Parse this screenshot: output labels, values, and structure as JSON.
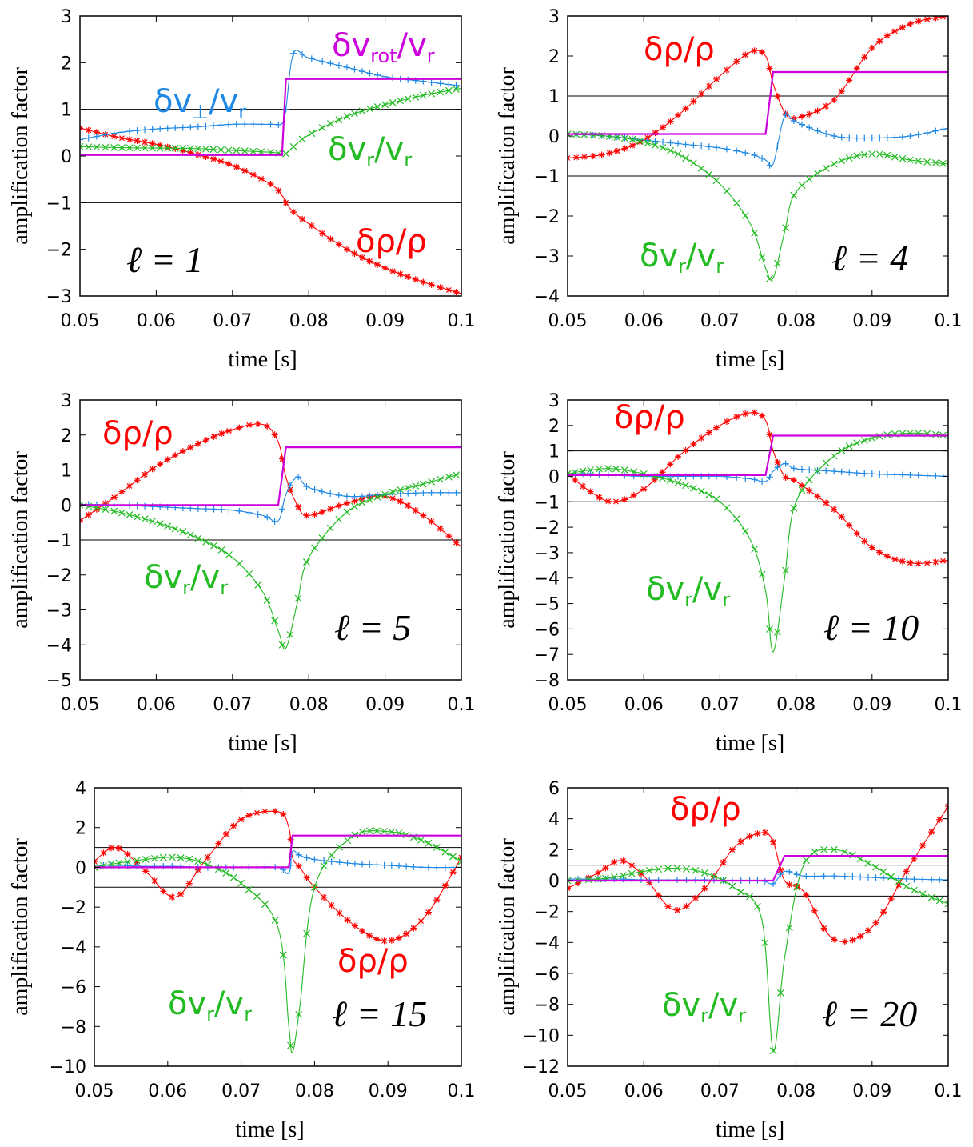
{
  "chart_data": [
    {
      "type": "line",
      "panel": "l=1",
      "ell_label": "ℓ = 1",
      "xlabel": "time [s]",
      "ylabel": "amplification factor",
      "xlim": [
        0.05,
        0.1
      ],
      "ylim": [
        -3,
        3
      ],
      "xticks": [
        "0.05",
        "0.06",
        "0.07",
        "0.08",
        "0.09",
        "0.1"
      ],
      "yticks": [
        "-3",
        "-2",
        "-1",
        "0",
        "1",
        "2",
        "3"
      ],
      "hlines": [
        1,
        -1
      ],
      "x": [
        0.05,
        0.055,
        0.06,
        0.065,
        0.07,
        0.075,
        0.0765,
        0.077,
        0.078,
        0.08,
        0.085,
        0.09,
        0.095,
        0.1
      ],
      "series": [
        {
          "name": "δρ/ρ",
          "color": "#ff0000",
          "marker": "*",
          "values": [
            0.6,
            0.4,
            0.25,
            0.05,
            -0.2,
            -0.6,
            -0.85,
            -1.0,
            -1.2,
            -1.45,
            -2.0,
            -2.4,
            -2.7,
            -2.95
          ]
        },
        {
          "name": "δv⊥/vr",
          "color": "#1e88e5",
          "marker": "+",
          "values": [
            0.35,
            0.5,
            0.58,
            0.62,
            0.68,
            0.68,
            0.7,
            1.0,
            2.2,
            2.1,
            1.9,
            1.7,
            1.6,
            1.5
          ]
        },
        {
          "name": "δvr/vr",
          "color": "#22bb22",
          "marker": "x",
          "values": [
            0.2,
            0.18,
            0.17,
            0.16,
            0.12,
            0.08,
            0.05,
            0.05,
            0.2,
            0.45,
            0.85,
            1.1,
            1.3,
            1.45
          ]
        },
        {
          "name": "δvrot/vr",
          "color": "#cc00dd",
          "marker": "",
          "values": [
            0.02,
            0.02,
            0.02,
            0.02,
            0.02,
            0.02,
            0.02,
            1.65,
            1.65,
            1.65,
            1.65,
            1.65,
            1.65,
            1.65
          ]
        }
      ],
      "annotations": [
        {
          "series": "δvrot/vr",
          "base": "δv",
          "sub": "rot",
          "tail": "/v",
          "sub2": "r",
          "color": "#cc00dd"
        },
        {
          "series": "δv⊥/vr",
          "base": "δv",
          "sub": "⊥",
          "tail": "/v",
          "sub2": "r",
          "color": "#1e88e5"
        },
        {
          "series": "δvr/vr",
          "base": "δv",
          "sub": "r",
          "tail": "/v",
          "sub2": "r",
          "color": "#22bb22"
        },
        {
          "series": "δρ/ρ",
          "base": "δρ/ρ",
          "sub": "",
          "tail": "",
          "sub2": "",
          "color": "#ff0000"
        }
      ]
    },
    {
      "type": "line",
      "panel": "l=4",
      "ell_label": "ℓ = 4",
      "xlabel": "time [s]",
      "ylabel": "amplification factor",
      "xlim": [
        0.05,
        0.1
      ],
      "ylim": [
        -4,
        3
      ],
      "xticks": [
        "0.05",
        "0.06",
        "0.07",
        "0.08",
        "0.09",
        "0.1"
      ],
      "yticks": [
        "-4",
        "-3",
        "-2",
        "-1",
        "0",
        "1",
        "2",
        "3"
      ],
      "hlines": [
        1,
        -1
      ],
      "x": [
        0.05,
        0.055,
        0.06,
        0.065,
        0.07,
        0.074,
        0.076,
        0.077,
        0.0785,
        0.08,
        0.085,
        0.09,
        0.095,
        0.1
      ],
      "series": [
        {
          "name": "δρ/ρ",
          "color": "#ff0000",
          "marker": "*",
          "values": [
            -0.55,
            -0.45,
            -0.1,
            0.6,
            1.5,
            2.1,
            2.0,
            1.3,
            0.6,
            0.45,
            0.9,
            2.2,
            2.8,
            3.0
          ]
        },
        {
          "name": "δv⊥/vr",
          "color": "#1e88e5",
          "marker": "+",
          "values": [
            0.05,
            0.0,
            -0.1,
            -0.2,
            -0.3,
            -0.45,
            -0.6,
            -0.7,
            0.5,
            0.35,
            0.0,
            -0.05,
            0.0,
            0.2
          ]
        },
        {
          "name": "δvr/vr",
          "color": "#22bb22",
          "marker": "x",
          "values": [
            0.05,
            0.0,
            -0.15,
            -0.5,
            -1.2,
            -2.2,
            -3.3,
            -3.55,
            -2.4,
            -1.4,
            -0.7,
            -0.45,
            -0.6,
            -0.7
          ]
        },
        {
          "name": "δvrot/vr",
          "color": "#cc00dd",
          "marker": "",
          "values": [
            0.05,
            0.05,
            0.05,
            0.05,
            0.05,
            0.05,
            0.05,
            1.6,
            1.6,
            1.6,
            1.6,
            1.6,
            1.6,
            1.6
          ]
        }
      ],
      "annotations": [
        {
          "series": "δρ/ρ",
          "base": "δρ/ρ",
          "sub": "",
          "tail": "",
          "sub2": "",
          "color": "#ff0000"
        },
        {
          "series": "δvr/vr",
          "base": "δv",
          "sub": "r",
          "tail": "/v",
          "sub2": "r",
          "color": "#22bb22"
        }
      ]
    },
    {
      "type": "line",
      "panel": "l=5",
      "ell_label": "ℓ = 5",
      "xlabel": "time [s]",
      "ylabel": "amplification factor",
      "xlim": [
        0.05,
        0.1
      ],
      "ylim": [
        -5,
        3
      ],
      "xticks": [
        "0.05",
        "0.06",
        "0.07",
        "0.08",
        "0.09",
        "0.1"
      ],
      "yticks": [
        "-5",
        "-4",
        "-3",
        "-2",
        "-1",
        "0",
        "1",
        "2",
        "3"
      ],
      "hlines": [
        1,
        -1
      ],
      "x": [
        0.05,
        0.055,
        0.06,
        0.065,
        0.07,
        0.074,
        0.076,
        0.077,
        0.0785,
        0.08,
        0.085,
        0.09,
        0.095,
        0.1
      ],
      "series": [
        {
          "name": "δρ/ρ",
          "color": "#ff0000",
          "marker": "*",
          "values": [
            -0.45,
            0.3,
            1.1,
            1.7,
            2.15,
            2.3,
            1.8,
            0.8,
            0.0,
            -0.3,
            0.05,
            0.25,
            -0.3,
            -1.2
          ]
        },
        {
          "name": "δv⊥/vr",
          "color": "#1e88e5",
          "marker": "+",
          "values": [
            0.02,
            0.0,
            -0.05,
            -0.1,
            -0.15,
            -0.3,
            -0.45,
            0.3,
            0.8,
            0.5,
            0.25,
            0.3,
            0.35,
            0.35
          ]
        },
        {
          "name": "δvr/vr",
          "color": "#22bb22",
          "marker": "x",
          "values": [
            0.0,
            -0.2,
            -0.5,
            -0.9,
            -1.5,
            -2.5,
            -3.6,
            -4.1,
            -2.8,
            -1.5,
            -0.2,
            0.3,
            0.6,
            0.9
          ]
        },
        {
          "name": "δvrot/vr",
          "color": "#cc00dd",
          "marker": "",
          "values": [
            0.0,
            0.0,
            0.0,
            0.0,
            0.0,
            0.0,
            0.0,
            1.65,
            1.65,
            1.65,
            1.65,
            1.65,
            1.65,
            1.65
          ]
        }
      ],
      "annotations": [
        {
          "series": "δρ/ρ",
          "base": "δρ/ρ",
          "sub": "",
          "tail": "",
          "sub2": "",
          "color": "#ff0000"
        },
        {
          "series": "δvr/vr",
          "base": "δv",
          "sub": "r",
          "tail": "/v",
          "sub2": "r",
          "color": "#22bb22"
        }
      ]
    },
    {
      "type": "line",
      "panel": "l=10",
      "ell_label": "ℓ = 10",
      "xlabel": "time [s]",
      "ylabel": "amplification factor",
      "xlim": [
        0.05,
        0.1
      ],
      "ylim": [
        -8,
        3
      ],
      "xticks": [
        "0.05",
        "0.06",
        "0.07",
        "0.08",
        "0.09",
        "0.1"
      ],
      "yticks": [
        "-8",
        "-7",
        "-6",
        "-5",
        "-4",
        "-3",
        "-2",
        "-1",
        "0",
        "1",
        "2",
        "3"
      ],
      "hlines": [
        1,
        -1
      ],
      "x": [
        0.05,
        0.053,
        0.056,
        0.06,
        0.065,
        0.07,
        0.074,
        0.076,
        0.077,
        0.0785,
        0.08,
        0.085,
        0.09,
        0.095,
        0.1
      ],
      "series": [
        {
          "name": "δρ/ρ",
          "color": "#ff0000",
          "marker": "*",
          "values": [
            0.1,
            -0.6,
            -1.0,
            -0.5,
            0.9,
            2.0,
            2.5,
            2.2,
            1.0,
            0.0,
            -0.2,
            -1.3,
            -2.8,
            -3.4,
            -3.3
          ]
        },
        {
          "name": "δv⊥/vr",
          "color": "#1e88e5",
          "marker": "+",
          "values": [
            0.1,
            0.1,
            0.05,
            0.0,
            0.0,
            0.0,
            -0.1,
            -0.2,
            0.2,
            0.5,
            0.3,
            0.2,
            0.1,
            0.05,
            0.0
          ]
        },
        {
          "name": "δvr/vr",
          "color": "#22bb22",
          "marker": "x",
          "values": [
            0.1,
            0.25,
            0.3,
            0.1,
            -0.3,
            -1.0,
            -2.5,
            -4.5,
            -6.9,
            -4.0,
            -1.0,
            0.8,
            1.5,
            1.7,
            1.6
          ]
        },
        {
          "name": "δvrot/vr",
          "color": "#cc00dd",
          "marker": "",
          "values": [
            0.05,
            0.05,
            0.05,
            0.05,
            0.05,
            0.05,
            0.05,
            0.05,
            1.6,
            1.6,
            1.6,
            1.6,
            1.6,
            1.6,
            1.6
          ]
        }
      ],
      "annotations": [
        {
          "series": "δρ/ρ",
          "base": "δρ/ρ",
          "sub": "",
          "tail": "",
          "sub2": "",
          "color": "#ff0000"
        },
        {
          "series": "δvr/vr",
          "base": "δv",
          "sub": "r",
          "tail": "/v",
          "sub2": "r",
          "color": "#22bb22"
        }
      ]
    },
    {
      "type": "line",
      "panel": "l=15",
      "ell_label": "ℓ = 15",
      "xlabel": "time [s]",
      "ylabel": "amplification factor",
      "xlim": [
        0.05,
        0.1
      ],
      "ylim": [
        -10,
        4
      ],
      "xticks": [
        "0.05",
        "0.06",
        "0.07",
        "0.08",
        "0.09",
        "0.1"
      ],
      "yticks": [
        "-10",
        "-8",
        "-6",
        "-4",
        "-2",
        "0",
        "2",
        "4"
      ],
      "hlines": [
        1,
        -1
      ],
      "x": [
        0.05,
        0.053,
        0.057,
        0.061,
        0.065,
        0.07,
        0.075,
        0.0765,
        0.077,
        0.078,
        0.08,
        0.085,
        0.09,
        0.095,
        0.1
      ],
      "series": [
        {
          "name": "δρ/ρ",
          "color": "#ff0000",
          "marker": "*",
          "values": [
            0.3,
            1.0,
            -0.2,
            -1.5,
            0.3,
            2.4,
            2.8,
            2.0,
            0.5,
            0.0,
            -1.0,
            -2.8,
            -3.7,
            -2.5,
            0.5
          ]
        },
        {
          "name": "δv⊥/vr",
          "color": "#1e88e5",
          "marker": "+",
          "values": [
            0.1,
            0.1,
            0.05,
            0.05,
            0.0,
            0.0,
            0.0,
            -0.3,
            0.8,
            0.6,
            0.4,
            0.2,
            0.1,
            0.0,
            0.0
          ]
        },
        {
          "name": "δvr/vr",
          "color": "#22bb22",
          "marker": "x",
          "values": [
            0.0,
            0.2,
            0.4,
            0.5,
            0.2,
            -0.8,
            -3.0,
            -8.0,
            -9.3,
            -7.0,
            -1.0,
            1.5,
            1.8,
            1.3,
            0.3
          ]
        },
        {
          "name": "δvrot/vr",
          "color": "#cc00dd",
          "marker": "",
          "values": [
            0.0,
            0.0,
            0.0,
            0.0,
            0.0,
            0.0,
            0.0,
            0.0,
            1.6,
            1.6,
            1.6,
            1.6,
            1.6,
            1.6,
            1.6
          ]
        }
      ],
      "annotations": [
        {
          "series": "δρ/ρ",
          "base": "δρ/ρ",
          "sub": "",
          "tail": "",
          "sub2": "",
          "color": "#ff0000"
        },
        {
          "series": "δvr/vr",
          "base": "δv",
          "sub": "r",
          "tail": "/v",
          "sub2": "r",
          "color": "#22bb22"
        }
      ]
    },
    {
      "type": "line",
      "panel": "l=20",
      "ell_label": "ℓ = 20",
      "xlabel": "time [s]",
      "ylabel": "amplification factor",
      "xlim": [
        0.05,
        0.1
      ],
      "ylim": [
        -12,
        6
      ],
      "xticks": [
        "0.05",
        "0.06",
        "0.07",
        "0.08",
        "0.09",
        "0.1"
      ],
      "yticks": [
        "-12",
        "-10",
        "-8",
        "-6",
        "-4",
        "-2",
        "0",
        "2",
        "4",
        "6"
      ],
      "hlines": [
        1,
        -1
      ],
      "x": [
        0.05,
        0.054,
        0.057,
        0.06,
        0.064,
        0.068,
        0.072,
        0.0755,
        0.077,
        0.0785,
        0.081,
        0.085,
        0.09,
        0.095,
        0.1
      ],
      "series": [
        {
          "name": "δρ/ρ",
          "color": "#ff0000",
          "marker": "*",
          "values": [
            -0.5,
            0.5,
            1.3,
            0.3,
            -1.9,
            -0.5,
            2.2,
            3.1,
            2.5,
            0.0,
            -0.7,
            -3.8,
            -3.0,
            1.0,
            4.8
          ]
        },
        {
          "name": "δv⊥/vr",
          "color": "#1e88e5",
          "marker": "+",
          "values": [
            0.1,
            0.1,
            0.1,
            0.05,
            0.05,
            0.05,
            0.0,
            0.0,
            -0.2,
            0.6,
            0.3,
            0.3,
            0.2,
            0.1,
            0.05
          ]
        },
        {
          "name": "δvr/vr",
          "color": "#22bb22",
          "marker": "x",
          "values": [
            0.0,
            0.1,
            0.3,
            0.6,
            0.8,
            0.5,
            -0.5,
            -2.5,
            -11.0,
            -5.0,
            1.0,
            2.0,
            1.0,
            -0.5,
            -1.5
          ]
        },
        {
          "name": "δvrot/vr",
          "color": "#cc00dd",
          "marker": "",
          "values": [
            0.0,
            0.0,
            0.0,
            0.0,
            0.0,
            0.0,
            0.0,
            0.0,
            0.0,
            1.6,
            1.6,
            1.6,
            1.6,
            1.6,
            1.6
          ]
        }
      ],
      "annotations": [
        {
          "series": "δρ/ρ",
          "base": "δρ/ρ",
          "sub": "",
          "tail": "",
          "sub2": "",
          "color": "#ff0000"
        },
        {
          "series": "δvr/vr",
          "base": "δv",
          "sub": "r",
          "tail": "/v",
          "sub2": "r",
          "color": "#22bb22"
        }
      ]
    }
  ]
}
